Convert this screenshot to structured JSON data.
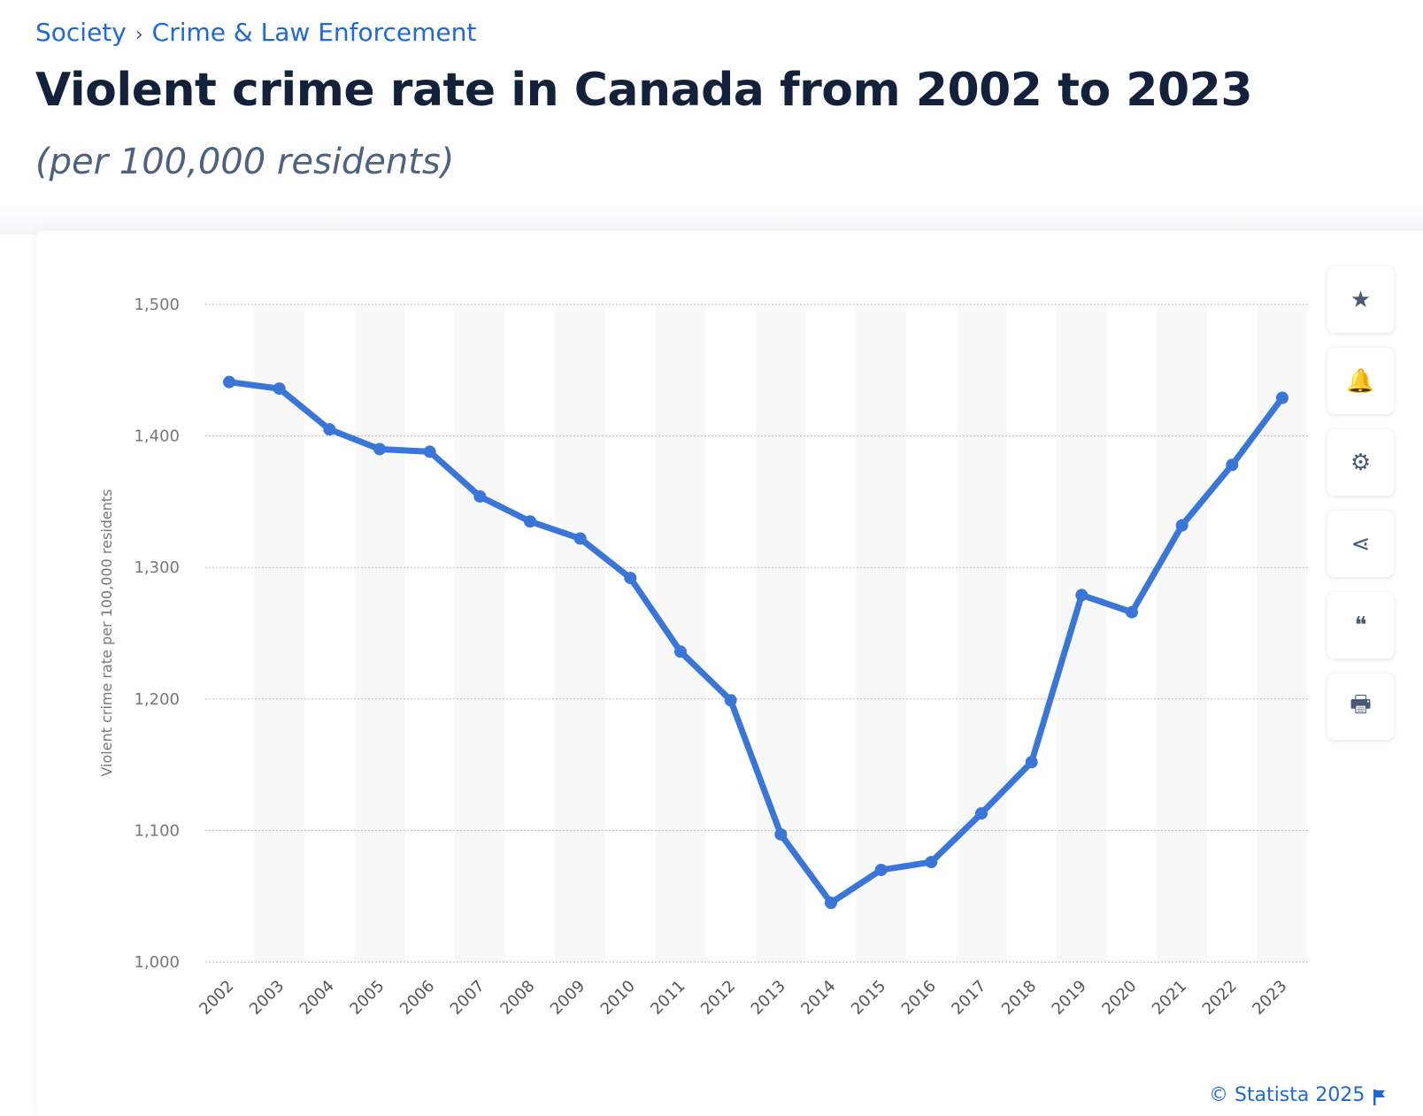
{
  "breadcrumb": {
    "items": [
      "Society",
      "Crime & Law Enforcement"
    ],
    "separator": "›"
  },
  "title": "Violent crime rate in Canada from 2002 to 2023",
  "subtitle": "(per 100,000 residents)",
  "toolbar": [
    {
      "icon": "star-icon",
      "glyph": "★"
    },
    {
      "icon": "bell-icon",
      "glyph": "🔔"
    },
    {
      "icon": "gear-icon",
      "glyph": "⚙"
    },
    {
      "icon": "share-icon",
      "glyph": "⋖"
    },
    {
      "icon": "quote-icon",
      "glyph": "❝"
    },
    {
      "icon": "print-icon",
      "glyph": "🖶"
    }
  ],
  "footer": {
    "copyright": "© Statista 2025",
    "icon": "flag-icon"
  },
  "colors": {
    "line": "#3a76d8",
    "accent": "#1f68d6",
    "title": "#13223a"
  },
  "chart_data": {
    "type": "line",
    "title": "",
    "xlabel": "",
    "ylabel": "Violent crime rate per 100,000 residents",
    "ylim": [
      1000,
      1500
    ],
    "yticks": [
      1000,
      1100,
      1200,
      1300,
      1400,
      1500
    ],
    "ytick_labels": [
      "1,000",
      "1,100",
      "1,200",
      "1,300",
      "1,400",
      "1,500"
    ],
    "grid": true,
    "categories": [
      "2002",
      "2003",
      "2004",
      "2005",
      "2006",
      "2007",
      "2008",
      "2009",
      "2010",
      "2011",
      "2012",
      "2013",
      "2014",
      "2015",
      "2016",
      "2017",
      "2018",
      "2019",
      "2020",
      "2021",
      "2022",
      "2023"
    ],
    "series": [
      {
        "values": [
          1441,
          1436,
          1405,
          1390,
          1388,
          1354,
          1335,
          1322,
          1292,
          1236,
          1199,
          1097,
          1045,
          1070,
          1076,
          1113,
          1152,
          1279,
          1266,
          1332,
          1378,
          1429
        ]
      }
    ]
  }
}
